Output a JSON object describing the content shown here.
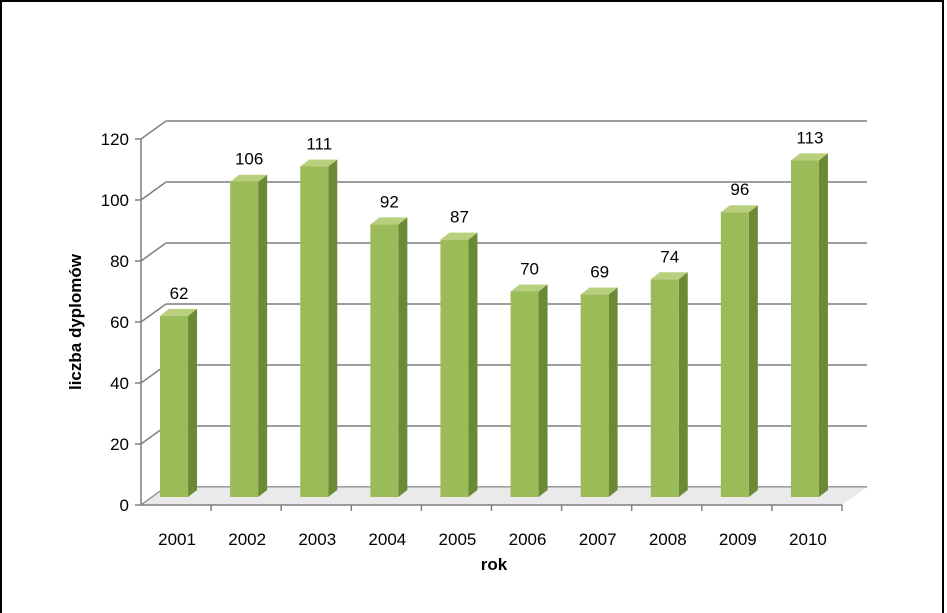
{
  "chart_data": {
    "type": "bar",
    "style": "3d-column",
    "categories": [
      "2001",
      "2002",
      "2003",
      "2004",
      "2005",
      "2006",
      "2007",
      "2008",
      "2009",
      "2010"
    ],
    "values": [
      62,
      106,
      111,
      92,
      87,
      70,
      69,
      74,
      96,
      113
    ],
    "xlabel": "rok",
    "ylabel": "liczba dyplomów",
    "ylim": [
      0,
      120
    ],
    "yticks": [
      0,
      20,
      40,
      60,
      80,
      100,
      120
    ],
    "grid": true,
    "legend": "none",
    "colors": {
      "bar_front": "#9bbb59",
      "bar_side": "#6b8a35",
      "bar_top": "#b8d07e",
      "grid": "#7f7f7f",
      "floor": "#d9d9d9"
    }
  }
}
